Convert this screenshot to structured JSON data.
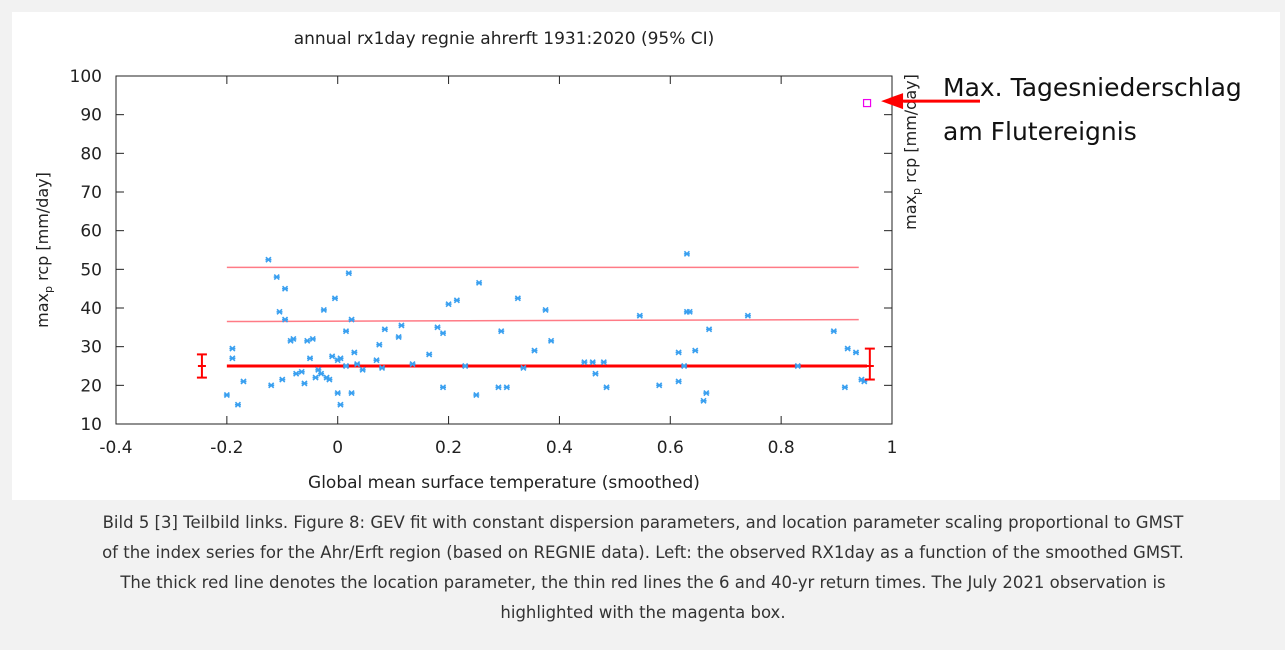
{
  "annotation": {
    "line1": "Max. Tagesniederschlag",
    "line2": "am Flutereignis"
  },
  "caption": {
    "lines": [
      "Bild 5 [3] Teilbild links. Figure 8: GEV fit with constant dispersion parameters, and location parameter scaling proportional to GMST",
      "of the index series for the Ahr/Erft region (based on REGNIE data). Left: the observed RX1day as a function of the smoothed GMST.",
      "The thick red line denotes the location parameter, the thin red lines the 6 and 40-yr return times. The July 2021 observation is",
      "highlighted with the magenta box."
    ]
  },
  "colors": {
    "points": "#3aa0f0",
    "fit_lines": "#ff0000",
    "return_lines": "#ff7b86",
    "highlight": "#ee00ee",
    "arrow": "#ff0000"
  },
  "chart_data": {
    "type": "scatter",
    "title": "annual  rx1day regnie ahrerft 1931:2020 (95% CI)",
    "xlabel": "Global mean surface temperature (smoothed)",
    "ylabel": "max_p rcp [mm/day]",
    "ylabel_right": "max_p rcp [mm/day]",
    "xlim": [
      -0.4,
      1
    ],
    "ylim": [
      10,
      100
    ],
    "xticks": [
      -0.4,
      -0.2,
      0,
      0.2,
      0.4,
      0.6,
      0.8,
      1
    ],
    "xtick_labels": [
      "-0.4",
      "-0.2",
      "0",
      "0.2",
      "0.4",
      "0.6",
      "0.8",
      "1"
    ],
    "yticks": [
      10,
      20,
      30,
      40,
      50,
      60,
      70,
      80,
      90,
      100
    ],
    "ytick_labels": [
      "10",
      "20",
      "30",
      "40",
      "50",
      "60",
      "70",
      "80",
      "90",
      "100"
    ],
    "grid": false,
    "points": [
      [
        -0.2,
        17.5
      ],
      [
        -0.19,
        29.5
      ],
      [
        -0.19,
        27
      ],
      [
        -0.18,
        15
      ],
      [
        -0.17,
        21
      ],
      [
        -0.125,
        52.5
      ],
      [
        -0.12,
        20
      ],
      [
        -0.11,
        48
      ],
      [
        -0.105,
        39
      ],
      [
        -0.1,
        21.5
      ],
      [
        -0.095,
        45
      ],
      [
        -0.095,
        37
      ],
      [
        -0.085,
        31.5
      ],
      [
        -0.08,
        32
      ],
      [
        -0.075,
        23
      ],
      [
        -0.065,
        23.5
      ],
      [
        -0.06,
        20.5
      ],
      [
        -0.055,
        31.5
      ],
      [
        -0.05,
        27
      ],
      [
        -0.045,
        32
      ],
      [
        -0.04,
        22
      ],
      [
        -0.035,
        24
      ],
      [
        -0.03,
        23
      ],
      [
        -0.025,
        39.5
      ],
      [
        -0.02,
        22
      ],
      [
        -0.015,
        21.5
      ],
      [
        -0.01,
        27.5
      ],
      [
        -0.005,
        42.5
      ],
      [
        0.0,
        18
      ],
      [
        0.0,
        26.5
      ],
      [
        0.005,
        15
      ],
      [
        0.005,
        27
      ],
      [
        0.015,
        34
      ],
      [
        0.015,
        25
      ],
      [
        0.02,
        49
      ],
      [
        0.025,
        37
      ],
      [
        0.025,
        18
      ],
      [
        0.03,
        28.5
      ],
      [
        0.035,
        25.5
      ],
      [
        0.045,
        24
      ],
      [
        0.07,
        26.5
      ],
      [
        0.075,
        30.5
      ],
      [
        0.08,
        24.5
      ],
      [
        0.085,
        34.5
      ],
      [
        0.11,
        32.5
      ],
      [
        0.115,
        35.5
      ],
      [
        0.135,
        25.5
      ],
      [
        0.165,
        28
      ],
      [
        0.18,
        35
      ],
      [
        0.19,
        33.5
      ],
      [
        0.19,
        19.5
      ],
      [
        0.2,
        41
      ],
      [
        0.215,
        42
      ],
      [
        0.23,
        25
      ],
      [
        0.25,
        17.5
      ],
      [
        0.255,
        46.5
      ],
      [
        0.29,
        19.5
      ],
      [
        0.295,
        34
      ],
      [
        0.305,
        19.5
      ],
      [
        0.325,
        42.5
      ],
      [
        0.335,
        24.5
      ],
      [
        0.355,
        29
      ],
      [
        0.375,
        39.5
      ],
      [
        0.385,
        31.5
      ],
      [
        0.445,
        26
      ],
      [
        0.46,
        26
      ],
      [
        0.465,
        23
      ],
      [
        0.48,
        26
      ],
      [
        0.485,
        19.5
      ],
      [
        0.545,
        38
      ],
      [
        0.58,
        20
      ],
      [
        0.615,
        21
      ],
      [
        0.615,
        28.5
      ],
      [
        0.625,
        25
      ],
      [
        0.63,
        54
      ],
      [
        0.63,
        39
      ],
      [
        0.635,
        39
      ],
      [
        0.645,
        29
      ],
      [
        0.66,
        16
      ],
      [
        0.665,
        18
      ],
      [
        0.67,
        34.5
      ],
      [
        0.74,
        38
      ],
      [
        0.83,
        25
      ],
      [
        0.895,
        34
      ],
      [
        0.915,
        19.5
      ],
      [
        0.92,
        29.5
      ],
      [
        0.935,
        28.5
      ],
      [
        0.945,
        21.5
      ],
      [
        0.95,
        21
      ]
    ],
    "highlight_point": [
      0.955,
      93
    ],
    "location_line": {
      "x": [
        -0.2,
        0.955
      ],
      "y": [
        25,
        25
      ]
    },
    "return_lines": [
      {
        "x": [
          -0.2,
          0.94
        ],
        "y": [
          36.5,
          37
        ]
      },
      {
        "x": [
          -0.2,
          0.94
        ],
        "y": [
          50.5,
          50.5
        ]
      }
    ],
    "error_bars": [
      {
        "x": -0.245,
        "y": 25,
        "low": 22,
        "high": 28
      },
      {
        "x": 0.96,
        "y": 25,
        "low": 21.5,
        "high": 29.5
      }
    ]
  }
}
